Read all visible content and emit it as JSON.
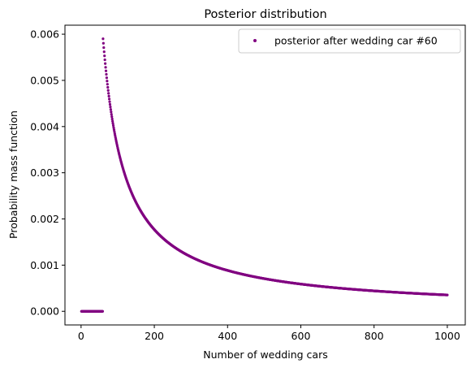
{
  "chart_data": {
    "type": "scatter",
    "title": "Posterior distribution",
    "xlabel": "Number of wedding cars",
    "ylabel": "Probability mass function",
    "xlim": [
      -44,
      1049
    ],
    "ylim": [
      -0.000295,
      0.006195
    ],
    "xticks": [
      0,
      200,
      400,
      600,
      800,
      1000
    ],
    "xtick_labels": [
      "0",
      "200",
      "400",
      "600",
      "800",
      "1000"
    ],
    "yticks": [
      0.0,
      0.001,
      0.002,
      0.003,
      0.004,
      0.005,
      0.006
    ],
    "ytick_labels": [
      "0.000",
      "0.001",
      "0.002",
      "0.003",
      "0.004",
      "0.005",
      "0.006"
    ],
    "grid": false,
    "legend_position": "upper right",
    "series": [
      {
        "name": "posterior after wedding car #60",
        "color": "#800080",
        "marker": "point",
        "x_range": [
          1,
          1000
        ],
        "zero_below": 60,
        "sample_points": [
          {
            "x": 60,
            "y": 0.0059
          },
          {
            "x": 100,
            "y": 0.00354
          },
          {
            "x": 200,
            "y": 0.00177
          },
          {
            "x": 400,
            "y": 0.000885
          },
          {
            "x": 600,
            "y": 0.00059
          },
          {
            "x": 800,
            "y": 0.00044
          },
          {
            "x": 1000,
            "y": 0.000354
          }
        ]
      }
    ]
  }
}
